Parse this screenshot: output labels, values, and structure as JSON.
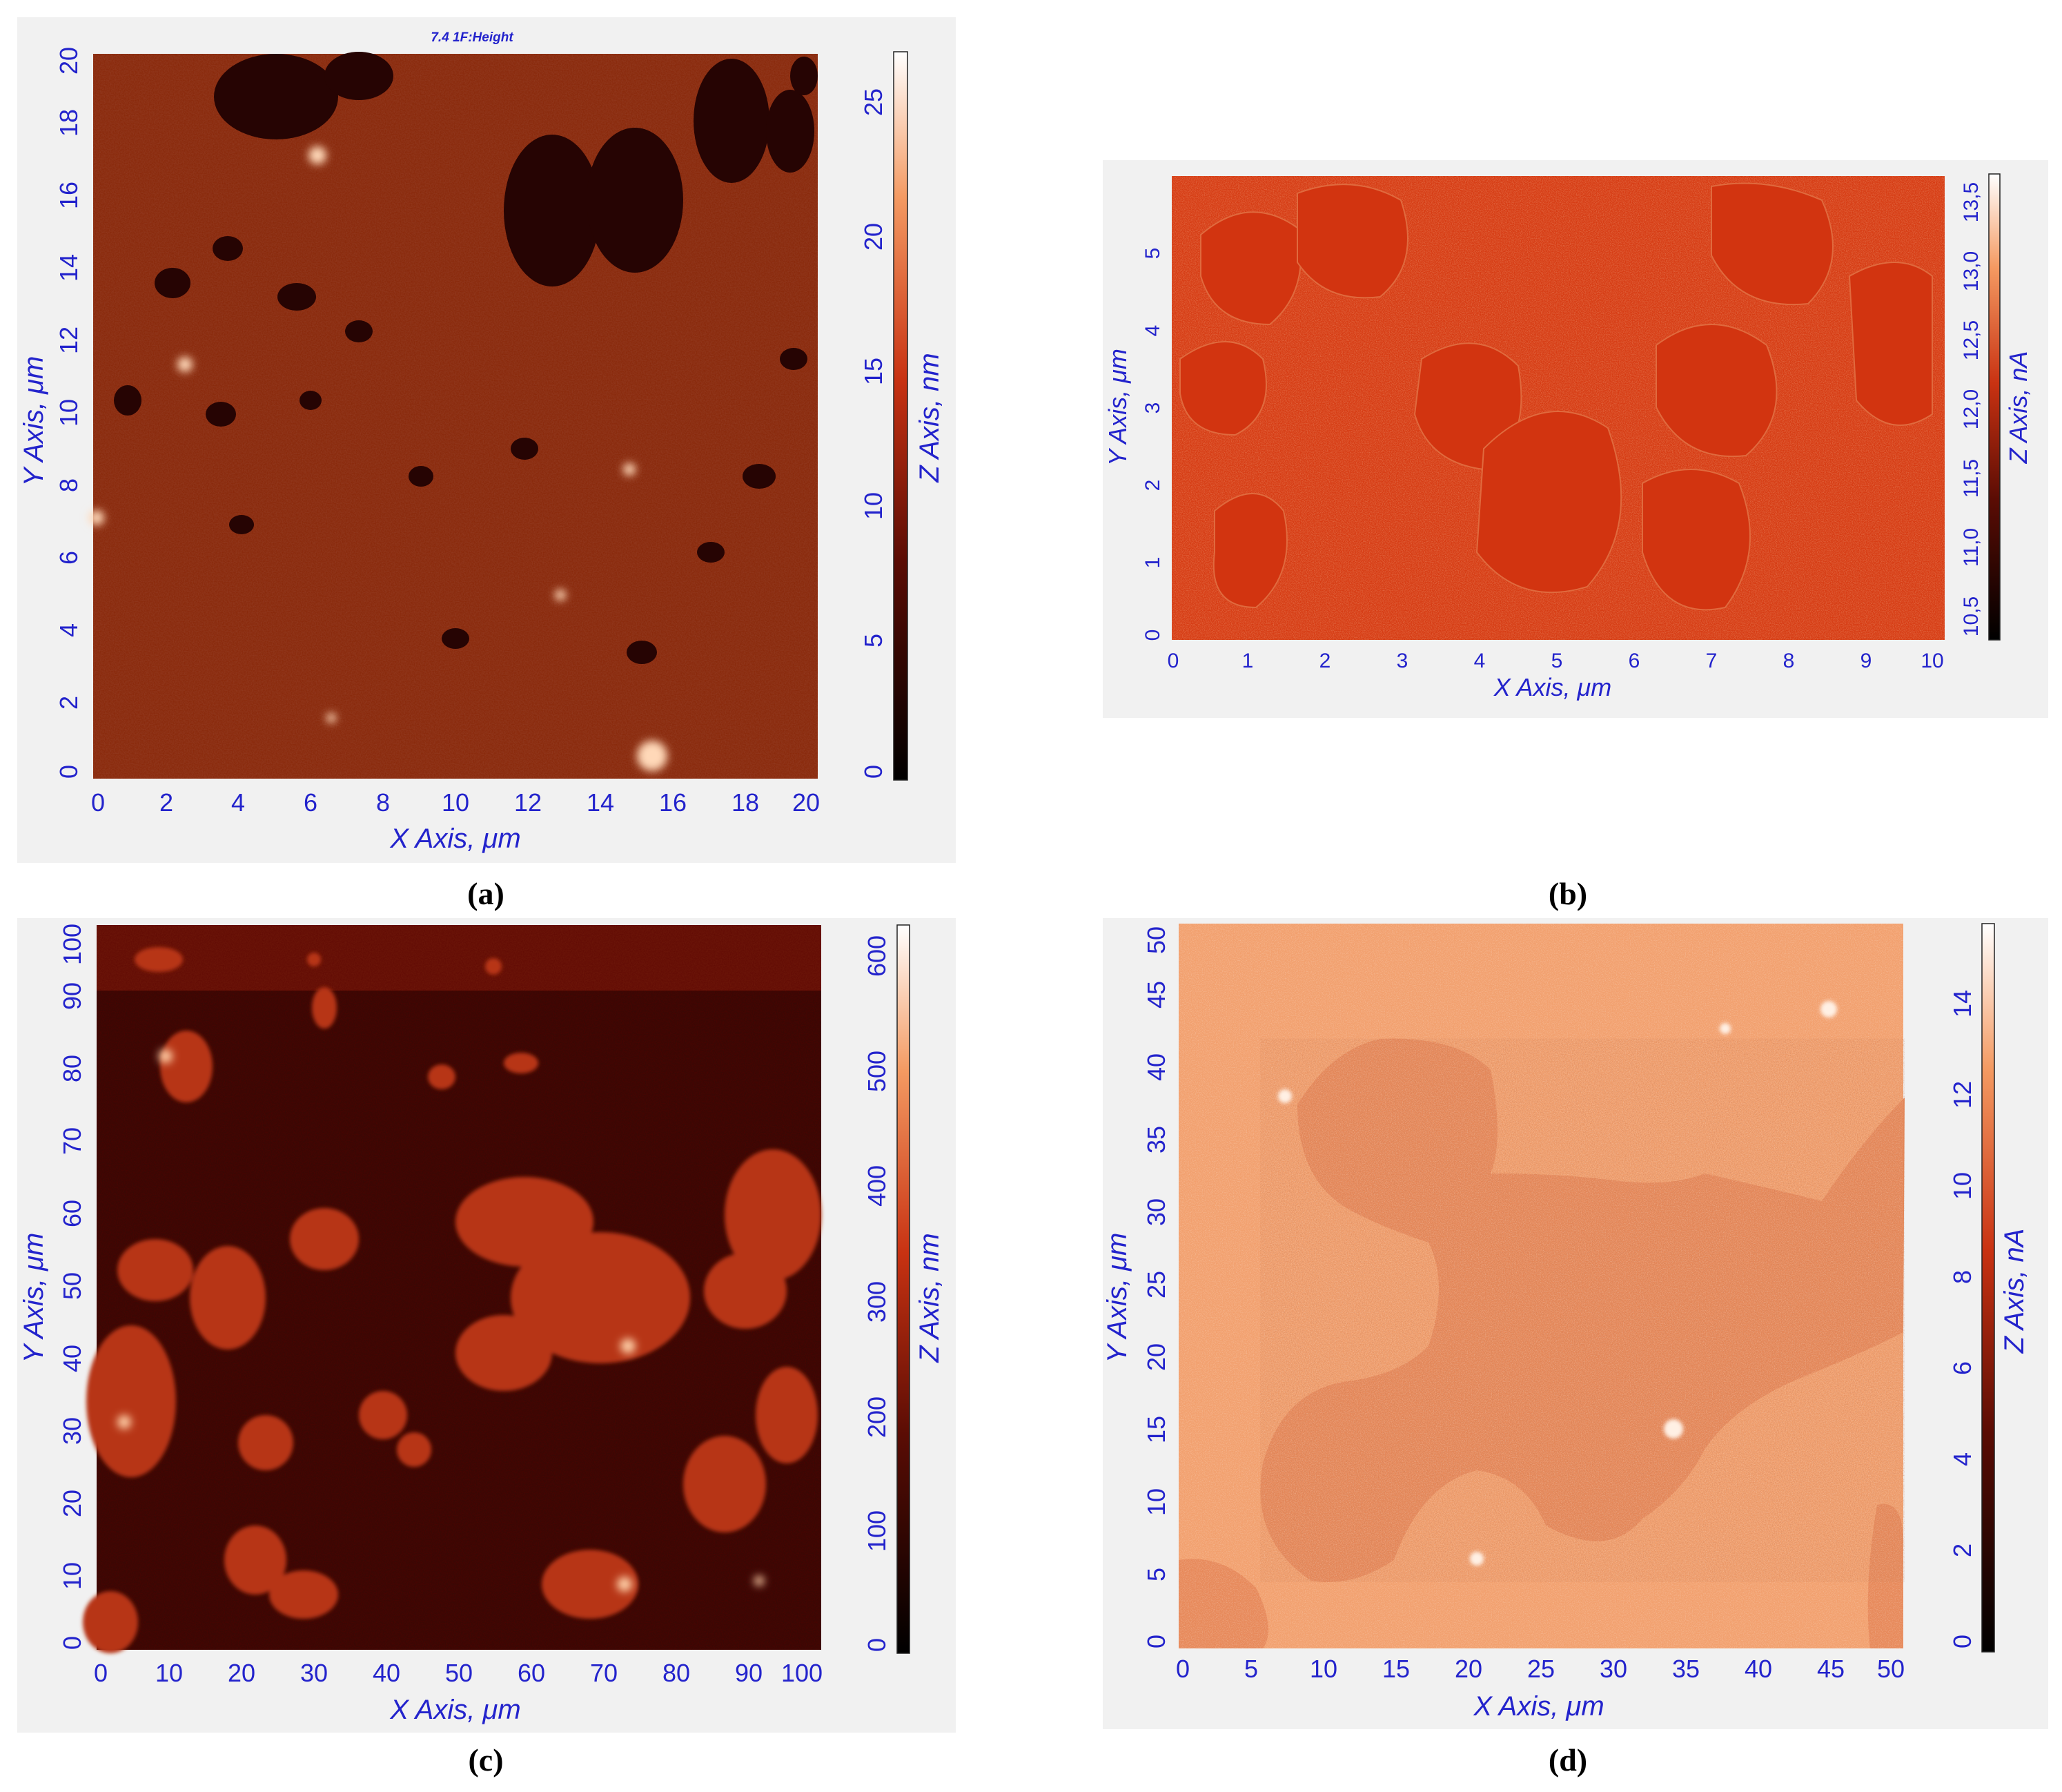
{
  "panels": [
    {
      "id": "a",
      "caption": "(a)",
      "scan_title": "7.4 1F:Height",
      "x_axis_label": "X Axis, μm",
      "y_axis_label": "Y Axis, μm",
      "z_axis_label": "Z Axis, nm",
      "x_ticks": [
        "0",
        "2",
        "4",
        "6",
        "8",
        "10",
        "12",
        "14",
        "16",
        "18",
        "20"
      ],
      "y_ticks": [
        "0",
        "2",
        "4",
        "6",
        "8",
        "10",
        "12",
        "14",
        "16",
        "18",
        "20"
      ],
      "z_ticks": [
        "0",
        "5",
        "10",
        "15",
        "20",
        "25"
      ],
      "x_range": [
        0,
        20
      ],
      "y_range": [
        0,
        20
      ],
      "z_range": [
        0,
        27
      ],
      "colormap": "dark red-orange heat",
      "image_color": "#8a2a0c"
    },
    {
      "id": "b",
      "caption": "(b)",
      "x_axis_label": "X Axis, μm",
      "y_axis_label": "Y Axis, μm",
      "z_axis_label": "Z Axis, nA",
      "x_ticks": [
        "0",
        "1",
        "2",
        "3",
        "4",
        "5",
        "6",
        "7",
        "8",
        "9",
        "10"
      ],
      "y_ticks": [
        "0",
        "1",
        "2",
        "3",
        "4",
        "5"
      ],
      "z_ticks": [
        "10,5",
        "11,0",
        "11,5",
        "12,0",
        "12,5",
        "13,0",
        "13,5"
      ],
      "x_range": [
        0,
        10
      ],
      "y_range": [
        0,
        6
      ],
      "z_range": [
        10.3,
        13.7
      ],
      "colormap": "dark red-orange heat",
      "image_color": "#d63c14"
    },
    {
      "id": "c",
      "caption": "(c)",
      "x_axis_label": "X Axis, μm",
      "y_axis_label": "Y Axis, μm",
      "z_axis_label": "Z Axis, nm",
      "x_ticks": [
        "0",
        "10",
        "20",
        "30",
        "40",
        "50",
        "60",
        "70",
        "80",
        "90",
        "100"
      ],
      "y_ticks": [
        "0",
        "10",
        "20",
        "30",
        "40",
        "50",
        "60",
        "70",
        "80",
        "90",
        "100"
      ],
      "z_ticks": [
        "0",
        "100",
        "200",
        "300",
        "400",
        "500",
        "600"
      ],
      "x_range": [
        0,
        100
      ],
      "y_range": [
        0,
        100
      ],
      "z_range": [
        0,
        630
      ],
      "colormap": "dark red-orange heat",
      "image_color": "#3a0804"
    },
    {
      "id": "d",
      "caption": "(d)",
      "x_axis_label": "X Axis, μm",
      "y_axis_label": "Y Axis, μm",
      "z_axis_label": "Z Axis, nA",
      "x_ticks": [
        "0",
        "5",
        "10",
        "15",
        "20",
        "25",
        "30",
        "35",
        "40",
        "45",
        "50"
      ],
      "y_ticks": [
        "0",
        "5",
        "10",
        "15",
        "20",
        "25",
        "30",
        "35",
        "40",
        "45",
        "50"
      ],
      "z_ticks": [
        "0",
        "2",
        "4",
        "6",
        "8",
        "10",
        "12",
        "14"
      ],
      "x_range": [
        0,
        50
      ],
      "y_range": [
        0,
        50
      ],
      "z_range": [
        0,
        16
      ],
      "colormap": "dark red-orange heat",
      "image_color": "#f2a06e"
    }
  ]
}
